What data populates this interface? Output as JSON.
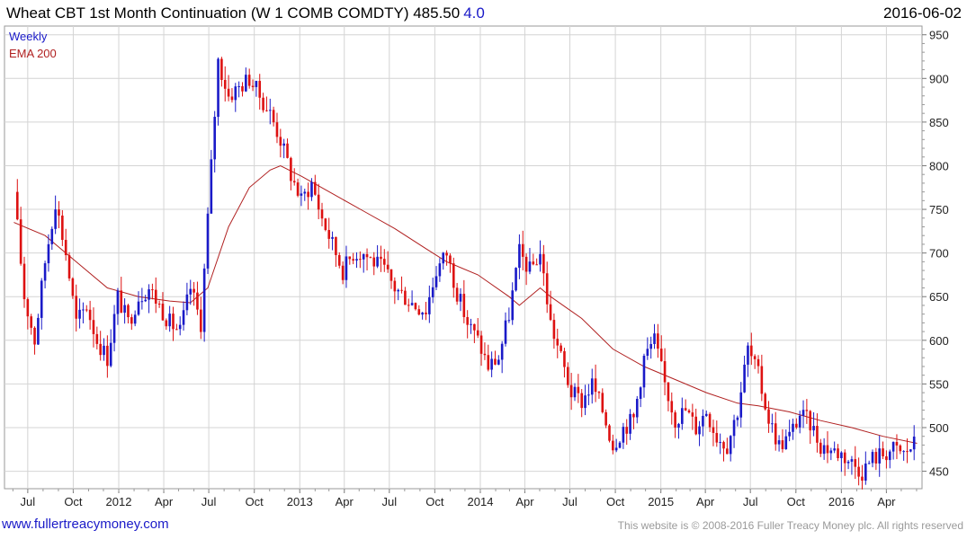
{
  "header": {
    "title": "Wheat CBT 1st Month Continuation (W 1 COMB COMDTY) 485.50",
    "change": "4.0",
    "date": "2016-06-02"
  },
  "legend": {
    "period": "Weekly",
    "indicator": "EMA 200"
  },
  "footer": {
    "site": "www.fullertreacymoney.com",
    "copyright": "This website is © 2008-2016 Fuller Treacy Money plc. All rights reserved"
  },
  "colors": {
    "up": "#1a1ac8",
    "down": "#dd1111",
    "ema": "#b02020",
    "grid": "#d4d4d4",
    "legend_period": "#1a1ac8",
    "legend_indicator": "#b02020"
  },
  "chart_data": {
    "type": "candlestick",
    "interval": "weekly",
    "ylim": [
      430,
      960
    ],
    "y_ticks": [
      450,
      500,
      550,
      600,
      650,
      700,
      750,
      800,
      850,
      900,
      950
    ],
    "x_ticks": [
      "Jul",
      "Oct",
      "2012",
      "Apr",
      "Jul",
      "Oct",
      "2013",
      "Apr",
      "Jul",
      "Oct",
      "2014",
      "Apr",
      "Jul",
      "Oct",
      "2015",
      "Apr",
      "Jul",
      "Oct",
      "2016",
      "Apr"
    ],
    "grid": true,
    "legend_position": "top-left",
    "close_path": [
      [
        "2011-06-03",
        770
      ],
      [
        "2011-06-24",
        650
      ],
      [
        "2011-07-15",
        600
      ],
      [
        "2011-08-05",
        690
      ],
      [
        "2011-08-26",
        760
      ],
      [
        "2011-09-16",
        700
      ],
      [
        "2011-10-07",
        620
      ],
      [
        "2011-10-28",
        640
      ],
      [
        "2011-11-18",
        600
      ],
      [
        "2011-12-09",
        580
      ],
      [
        "2011-12-30",
        650
      ],
      [
        "2012-01-20",
        620
      ],
      [
        "2012-02-10",
        650
      ],
      [
        "2012-03-02",
        660
      ],
      [
        "2012-03-23",
        640
      ],
      [
        "2012-04-13",
        620
      ],
      [
        "2012-05-04",
        610
      ],
      [
        "2012-05-25",
        660
      ],
      [
        "2012-06-15",
        620
      ],
      [
        "2012-07-06",
        800
      ],
      [
        "2012-07-20",
        920
      ],
      [
        "2012-08-10",
        880
      ],
      [
        "2012-08-31",
        890
      ],
      [
        "2012-09-21",
        900
      ],
      [
        "2012-10-12",
        880
      ],
      [
        "2012-11-02",
        860
      ],
      [
        "2012-11-23",
        830
      ],
      [
        "2012-12-14",
        790
      ],
      [
        "2013-01-04",
        760
      ],
      [
        "2013-01-25",
        780
      ],
      [
        "2013-02-15",
        740
      ],
      [
        "2013-03-08",
        710
      ],
      [
        "2013-03-29",
        680
      ],
      [
        "2013-04-19",
        700
      ],
      [
        "2013-05-10",
        700
      ],
      [
        "2013-05-31",
        690
      ],
      [
        "2013-06-21",
        680
      ],
      [
        "2013-07-12",
        660
      ],
      [
        "2013-08-02",
        650
      ],
      [
        "2013-08-23",
        640
      ],
      [
        "2013-09-13",
        635
      ],
      [
        "2013-10-04",
        680
      ],
      [
        "2013-10-25",
        700
      ],
      [
        "2013-11-15",
        655
      ],
      [
        "2013-12-06",
        620
      ],
      [
        "2013-12-27",
        600
      ],
      [
        "2014-01-17",
        570
      ],
      [
        "2014-02-07",
        580
      ],
      [
        "2014-02-28",
        630
      ],
      [
        "2014-03-21",
        700
      ],
      [
        "2014-04-11",
        680
      ],
      [
        "2014-05-02",
        700
      ],
      [
        "2014-05-23",
        620
      ],
      [
        "2014-06-13",
        580
      ],
      [
        "2014-07-04",
        540
      ],
      [
        "2014-07-25",
        530
      ],
      [
        "2014-08-15",
        550
      ],
      [
        "2014-09-05",
        520
      ],
      [
        "2014-09-26",
        480
      ],
      [
        "2014-10-17",
        500
      ],
      [
        "2014-11-07",
        510
      ],
      [
        "2014-11-28",
        580
      ],
      [
        "2014-12-19",
        600
      ],
      [
        "2015-01-09",
        550
      ],
      [
        "2015-01-30",
        510
      ],
      [
        "2015-02-20",
        520
      ],
      [
        "2015-03-13",
        500
      ],
      [
        "2015-04-03",
        520
      ],
      [
        "2015-04-24",
        490
      ],
      [
        "2015-05-15",
        480
      ],
      [
        "2015-06-05",
        520
      ],
      [
        "2015-06-26",
        590
      ],
      [
        "2015-07-17",
        560
      ],
      [
        "2015-08-07",
        510
      ],
      [
        "2015-08-28",
        480
      ],
      [
        "2015-09-18",
        490
      ],
      [
        "2015-10-09",
        515
      ],
      [
        "2015-10-30",
        505
      ],
      [
        "2015-11-20",
        480
      ],
      [
        "2015-12-11",
        475
      ],
      [
        "2016-01-01",
        470
      ],
      [
        "2016-01-22",
        460
      ],
      [
        "2016-02-12",
        450
      ],
      [
        "2016-03-04",
        465
      ],
      [
        "2016-03-25",
        470
      ],
      [
        "2016-04-15",
        475
      ],
      [
        "2016-05-06",
        470
      ],
      [
        "2016-05-27",
        481.5
      ],
      [
        "2016-06-02",
        485.5
      ]
    ],
    "ema_path": [
      [
        "2011-06-03",
        735
      ],
      [
        "2011-08-05",
        720
      ],
      [
        "2011-10-07",
        690
      ],
      [
        "2011-12-09",
        660
      ],
      [
        "2012-02-10",
        650
      ],
      [
        "2012-04-13",
        645
      ],
      [
        "2012-05-25",
        643
      ],
      [
        "2012-06-29",
        660
      ],
      [
        "2012-08-10",
        730
      ],
      [
        "2012-09-21",
        775
      ],
      [
        "2012-11-02",
        795
      ],
      [
        "2012-11-23",
        800
      ],
      [
        "2013-01-04",
        788
      ],
      [
        "2013-03-08",
        768
      ],
      [
        "2013-05-10",
        748
      ],
      [
        "2013-07-12",
        728
      ],
      [
        "2013-09-13",
        705
      ],
      [
        "2013-10-25",
        690
      ],
      [
        "2013-12-27",
        675
      ],
      [
        "2014-02-28",
        650
      ],
      [
        "2014-03-21",
        640
      ],
      [
        "2014-05-02",
        660
      ],
      [
        "2014-05-23",
        650
      ],
      [
        "2014-07-25",
        625
      ],
      [
        "2014-09-26",
        590
      ],
      [
        "2014-11-28",
        570
      ],
      [
        "2015-01-30",
        555
      ],
      [
        "2015-04-03",
        540
      ],
      [
        "2015-06-05",
        528
      ],
      [
        "2015-07-17",
        525
      ],
      [
        "2015-09-18",
        518
      ],
      [
        "2015-11-20",
        508
      ],
      [
        "2016-01-22",
        500
      ],
      [
        "2016-03-25",
        490
      ],
      [
        "2016-06-02",
        482
      ]
    ]
  }
}
